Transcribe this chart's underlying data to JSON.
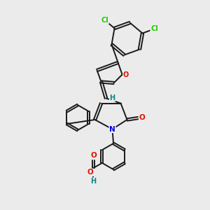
{
  "bg_color": "#ebebeb",
  "bond_color": "#1a1a1a",
  "bond_width": 1.4,
  "atom_colors": {
    "O": "#dd1100",
    "N": "#0000ee",
    "Cl": "#22cc00",
    "H": "#008888"
  },
  "label_fontsize": 7.5
}
